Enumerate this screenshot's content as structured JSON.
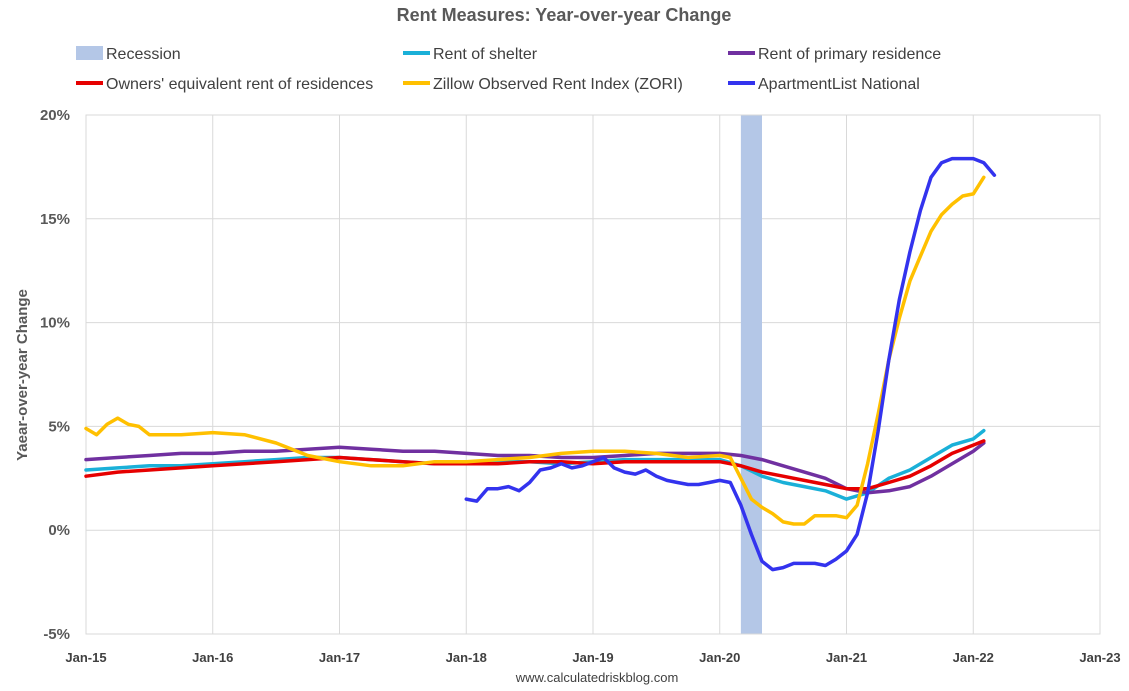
{
  "chart_data": {
    "type": "line",
    "title": "Rent Measures: Year-over-year Change",
    "ylabel": "Yaear-over-year Change",
    "source": "www.calculatedriskblog.com",
    "ylim": [
      -5,
      20
    ],
    "yticks": [
      {
        "value": 20,
        "label": "20%"
      },
      {
        "value": 15,
        "label": "15%"
      },
      {
        "value": 10,
        "label": "10%"
      },
      {
        "value": 5,
        "label": "5%"
      },
      {
        "value": 0,
        "label": "0%"
      },
      {
        "value": -5,
        "label": "-5%"
      }
    ],
    "xlim": [
      "2015-01",
      "2023-01"
    ],
    "xticks": [
      {
        "value": "2015-01",
        "label": "Jan-15"
      },
      {
        "value": "2016-01",
        "label": "Jan-16"
      },
      {
        "value": "2017-01",
        "label": "Jan-17"
      },
      {
        "value": "2018-01",
        "label": "Jan-18"
      },
      {
        "value": "2019-01",
        "label": "Jan-19"
      },
      {
        "value": "2020-01",
        "label": "Jan-20"
      },
      {
        "value": "2021-01",
        "label": "Jan-21"
      },
      {
        "value": "2022-01",
        "label": "Jan-22"
      },
      {
        "value": "2023-01",
        "label": "Jan-23"
      }
    ],
    "grid": true,
    "legend_position": "top",
    "recession": {
      "name": "Recession",
      "start": "2020-03",
      "end": "2020-05",
      "color": "#b4c7e7"
    },
    "series": [
      {
        "name": "Rent of shelter",
        "color": "#1ab0d8",
        "points": [
          [
            "2015-01",
            2.9
          ],
          [
            "2015-04",
            3.0
          ],
          [
            "2015-07",
            3.1
          ],
          [
            "2015-10",
            3.1
          ],
          [
            "2016-01",
            3.2
          ],
          [
            "2016-04",
            3.3
          ],
          [
            "2016-07",
            3.4
          ],
          [
            "2016-10",
            3.5
          ],
          [
            "2017-01",
            3.5
          ],
          [
            "2017-04",
            3.4
          ],
          [
            "2017-07",
            3.3
          ],
          [
            "2017-10",
            3.2
          ],
          [
            "2018-01",
            3.2
          ],
          [
            "2018-04",
            3.3
          ],
          [
            "2018-07",
            3.3
          ],
          [
            "2018-10",
            3.2
          ],
          [
            "2019-01",
            3.3
          ],
          [
            "2019-04",
            3.4
          ],
          [
            "2019-07",
            3.4
          ],
          [
            "2019-10",
            3.4
          ],
          [
            "2020-01",
            3.4
          ],
          [
            "2020-03",
            3.1
          ],
          [
            "2020-05",
            2.6
          ],
          [
            "2020-07",
            2.3
          ],
          [
            "2020-09",
            2.1
          ],
          [
            "2020-11",
            1.9
          ],
          [
            "2021-01",
            1.5
          ],
          [
            "2021-03",
            1.8
          ],
          [
            "2021-05",
            2.5
          ],
          [
            "2021-07",
            2.9
          ],
          [
            "2021-09",
            3.5
          ],
          [
            "2021-11",
            4.1
          ],
          [
            "2022-01",
            4.4
          ],
          [
            "2022-02",
            4.8
          ]
        ]
      },
      {
        "name": "Rent of primary residence",
        "color": "#7030a0",
        "points": [
          [
            "2015-01",
            3.4
          ],
          [
            "2015-04",
            3.5
          ],
          [
            "2015-07",
            3.6
          ],
          [
            "2015-10",
            3.7
          ],
          [
            "2016-01",
            3.7
          ],
          [
            "2016-04",
            3.8
          ],
          [
            "2016-07",
            3.8
          ],
          [
            "2016-10",
            3.9
          ],
          [
            "2017-01",
            4.0
          ],
          [
            "2017-04",
            3.9
          ],
          [
            "2017-07",
            3.8
          ],
          [
            "2017-10",
            3.8
          ],
          [
            "2018-01",
            3.7
          ],
          [
            "2018-04",
            3.6
          ],
          [
            "2018-07",
            3.6
          ],
          [
            "2018-10",
            3.5
          ],
          [
            "2019-01",
            3.5
          ],
          [
            "2019-04",
            3.6
          ],
          [
            "2019-07",
            3.7
          ],
          [
            "2019-10",
            3.7
          ],
          [
            "2020-01",
            3.7
          ],
          [
            "2020-03",
            3.6
          ],
          [
            "2020-05",
            3.4
          ],
          [
            "2020-07",
            3.1
          ],
          [
            "2020-09",
            2.8
          ],
          [
            "2020-11",
            2.5
          ],
          [
            "2021-01",
            2.0
          ],
          [
            "2021-03",
            1.8
          ],
          [
            "2021-05",
            1.9
          ],
          [
            "2021-07",
            2.1
          ],
          [
            "2021-09",
            2.6
          ],
          [
            "2021-11",
            3.2
          ],
          [
            "2022-01",
            3.8
          ],
          [
            "2022-02",
            4.2
          ]
        ]
      },
      {
        "name": "Owners' equivalent rent of residences",
        "color": "#e60000",
        "points": [
          [
            "2015-01",
            2.6
          ],
          [
            "2015-04",
            2.8
          ],
          [
            "2015-07",
            2.9
          ],
          [
            "2015-10",
            3.0
          ],
          [
            "2016-01",
            3.1
          ],
          [
            "2016-04",
            3.2
          ],
          [
            "2016-07",
            3.3
          ],
          [
            "2016-10",
            3.4
          ],
          [
            "2017-01",
            3.5
          ],
          [
            "2017-04",
            3.4
          ],
          [
            "2017-07",
            3.3
          ],
          [
            "2017-10",
            3.2
          ],
          [
            "2018-01",
            3.2
          ],
          [
            "2018-04",
            3.2
          ],
          [
            "2018-07",
            3.3
          ],
          [
            "2018-10",
            3.3
          ],
          [
            "2019-01",
            3.2
          ],
          [
            "2019-04",
            3.3
          ],
          [
            "2019-07",
            3.3
          ],
          [
            "2019-10",
            3.3
          ],
          [
            "2020-01",
            3.3
          ],
          [
            "2020-03",
            3.1
          ],
          [
            "2020-05",
            2.8
          ],
          [
            "2020-07",
            2.6
          ],
          [
            "2020-09",
            2.4
          ],
          [
            "2020-11",
            2.2
          ],
          [
            "2021-01",
            2.0
          ],
          [
            "2021-03",
            2.0
          ],
          [
            "2021-05",
            2.3
          ],
          [
            "2021-07",
            2.6
          ],
          [
            "2021-09",
            3.1
          ],
          [
            "2021-11",
            3.7
          ],
          [
            "2022-01",
            4.1
          ],
          [
            "2022-02",
            4.3
          ]
        ]
      },
      {
        "name": "Zillow Observed Rent Index (ZORI)",
        "color": "#ffc000",
        "points": [
          [
            "2015-01",
            4.9
          ],
          [
            "2015-02",
            4.6
          ],
          [
            "2015-03",
            5.1
          ],
          [
            "2015-04",
            5.4
          ],
          [
            "2015-05",
            5.1
          ],
          [
            "2015-06",
            5.0
          ],
          [
            "2015-07",
            4.6
          ],
          [
            "2015-10",
            4.6
          ],
          [
            "2016-01",
            4.7
          ],
          [
            "2016-04",
            4.6
          ],
          [
            "2016-07",
            4.2
          ],
          [
            "2016-10",
            3.6
          ],
          [
            "2017-01",
            3.3
          ],
          [
            "2017-04",
            3.1
          ],
          [
            "2017-07",
            3.1
          ],
          [
            "2017-10",
            3.3
          ],
          [
            "2018-01",
            3.3
          ],
          [
            "2018-04",
            3.4
          ],
          [
            "2018-07",
            3.5
          ],
          [
            "2018-10",
            3.7
          ],
          [
            "2019-01",
            3.8
          ],
          [
            "2019-04",
            3.8
          ],
          [
            "2019-07",
            3.7
          ],
          [
            "2019-10",
            3.5
          ],
          [
            "2020-01",
            3.6
          ],
          [
            "2020-02",
            3.5
          ],
          [
            "2020-03",
            2.5
          ],
          [
            "2020-04",
            1.5
          ],
          [
            "2020-05",
            1.1
          ],
          [
            "2020-06",
            0.8
          ],
          [
            "2020-07",
            0.4
          ],
          [
            "2020-08",
            0.3
          ],
          [
            "2020-09",
            0.3
          ],
          [
            "2020-10",
            0.7
          ],
          [
            "2020-11",
            0.7
          ],
          [
            "2020-12",
            0.7
          ],
          [
            "2021-01",
            0.6
          ],
          [
            "2021-02",
            1.2
          ],
          [
            "2021-03",
            3.2
          ],
          [
            "2021-04",
            5.6
          ],
          [
            "2021-05",
            8.2
          ],
          [
            "2021-06",
            10.2
          ],
          [
            "2021-07",
            12.0
          ],
          [
            "2021-08",
            13.2
          ],
          [
            "2021-09",
            14.4
          ],
          [
            "2021-10",
            15.2
          ],
          [
            "2021-11",
            15.7
          ],
          [
            "2021-12",
            16.1
          ],
          [
            "2022-01",
            16.2
          ],
          [
            "2022-02",
            17.0
          ]
        ]
      },
      {
        "name": "ApartmentList National",
        "color": "#3333ee",
        "points": [
          [
            "2018-01",
            1.5
          ],
          [
            "2018-02",
            1.4
          ],
          [
            "2018-03",
            2.0
          ],
          [
            "2018-04",
            2.0
          ],
          [
            "2018-05",
            2.1
          ],
          [
            "2018-06",
            1.9
          ],
          [
            "2018-07",
            2.3
          ],
          [
            "2018-08",
            2.9
          ],
          [
            "2018-09",
            3.0
          ],
          [
            "2018-10",
            3.2
          ],
          [
            "2018-11",
            3.0
          ],
          [
            "2018-12",
            3.1
          ],
          [
            "2019-01",
            3.3
          ],
          [
            "2019-02",
            3.5
          ],
          [
            "2019-03",
            3.0
          ],
          [
            "2019-04",
            2.8
          ],
          [
            "2019-05",
            2.7
          ],
          [
            "2019-06",
            2.9
          ],
          [
            "2019-07",
            2.6
          ],
          [
            "2019-08",
            2.4
          ],
          [
            "2019-09",
            2.3
          ],
          [
            "2019-10",
            2.2
          ],
          [
            "2019-11",
            2.2
          ],
          [
            "2019-12",
            2.3
          ],
          [
            "2020-01",
            2.4
          ],
          [
            "2020-02",
            2.3
          ],
          [
            "2020-03",
            1.2
          ],
          [
            "2020-04",
            -0.2
          ],
          [
            "2020-05",
            -1.5
          ],
          [
            "2020-06",
            -1.9
          ],
          [
            "2020-07",
            -1.8
          ],
          [
            "2020-08",
            -1.6
          ],
          [
            "2020-09",
            -1.6
          ],
          [
            "2020-10",
            -1.6
          ],
          [
            "2020-11",
            -1.7
          ],
          [
            "2020-12",
            -1.4
          ],
          [
            "2021-01",
            -1.0
          ],
          [
            "2021-02",
            -0.2
          ],
          [
            "2021-03",
            1.8
          ],
          [
            "2021-04",
            4.8
          ],
          [
            "2021-05",
            8.2
          ],
          [
            "2021-06",
            11.1
          ],
          [
            "2021-07",
            13.4
          ],
          [
            "2021-08",
            15.4
          ],
          [
            "2021-09",
            17.0
          ],
          [
            "2021-10",
            17.7
          ],
          [
            "2021-11",
            17.9
          ],
          [
            "2021-12",
            17.9
          ],
          [
            "2022-01",
            17.9
          ],
          [
            "2022-02",
            17.7
          ],
          [
            "2022-03",
            17.1
          ]
        ]
      }
    ]
  }
}
